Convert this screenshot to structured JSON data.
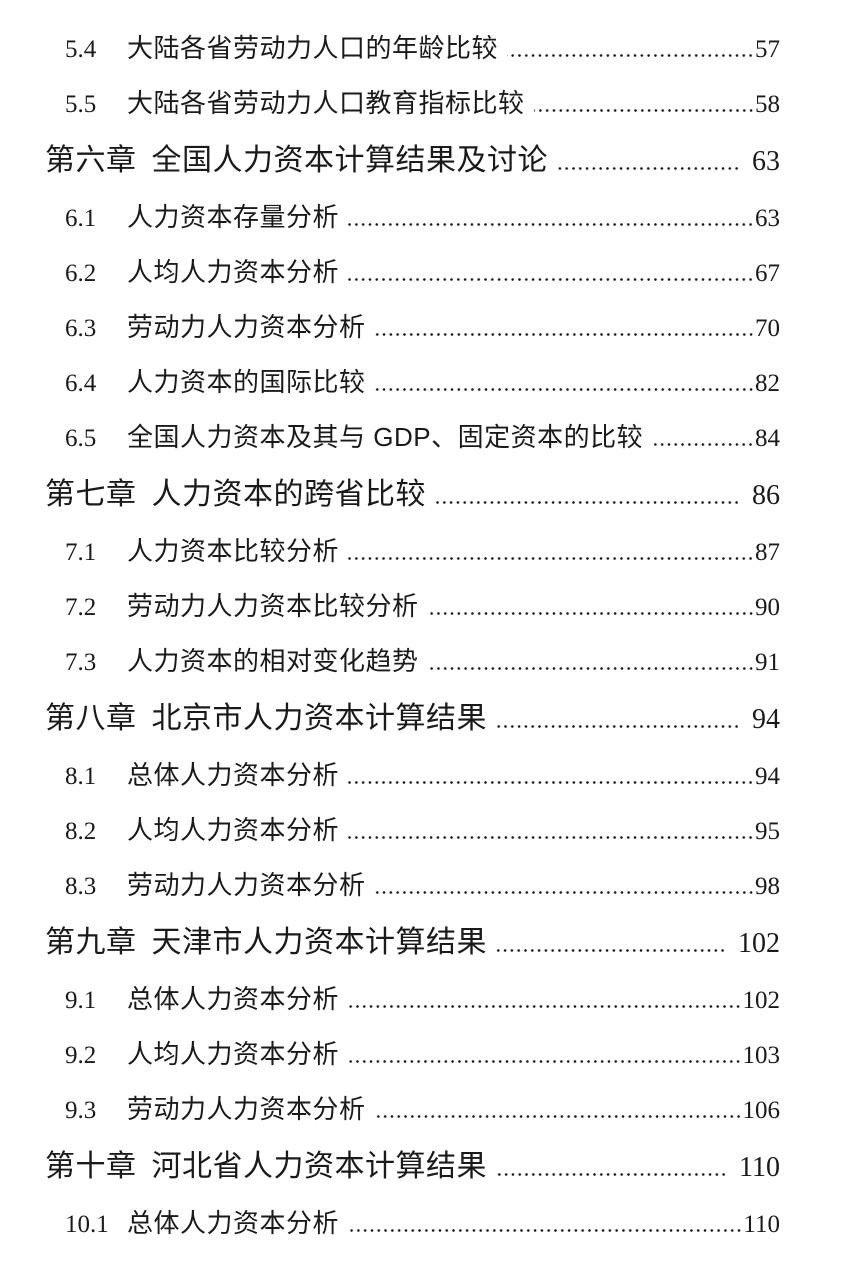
{
  "page": {
    "background_color": "#ffffff",
    "text_color": "#1a1a1a",
    "dot_leader_color": "#1a1a1a",
    "kind": "table-of-contents"
  },
  "toc": {
    "entries": [
      {
        "type": "section",
        "num": "5.4",
        "title": "大陆各省劳动力人口的年龄比较",
        "page": "57"
      },
      {
        "type": "section",
        "num": "5.5",
        "title": "大陆各省劳动力人口教育指标比较",
        "page": "58"
      },
      {
        "type": "chapter",
        "num": "第六章",
        "title": "全国人力资本计算结果及讨论",
        "page": "63"
      },
      {
        "type": "section",
        "num": "6.1",
        "title": "人力资本存量分析",
        "page": "63"
      },
      {
        "type": "section",
        "num": "6.2",
        "title": "人均人力资本分析",
        "page": "67"
      },
      {
        "type": "section",
        "num": "6.3",
        "title": "劳动力人力资本分析",
        "page": "70"
      },
      {
        "type": "section",
        "num": "6.4",
        "title": "人力资本的国际比较",
        "page": "82"
      },
      {
        "type": "section",
        "num": "6.5",
        "title": "全国人力资本及其与 GDP、固定资本的比较",
        "page": "84"
      },
      {
        "type": "chapter",
        "num": "第七章",
        "title": "人力资本的跨省比较",
        "page": "86"
      },
      {
        "type": "section",
        "num": "7.1",
        "title": "人力资本比较分析",
        "page": "87"
      },
      {
        "type": "section",
        "num": "7.2",
        "title": "劳动力人力资本比较分析",
        "page": "90"
      },
      {
        "type": "section",
        "num": "7.3",
        "title": "人力资本的相对变化趋势",
        "page": "91"
      },
      {
        "type": "chapter",
        "num": "第八章",
        "title": "北京市人力资本计算结果",
        "page": "94"
      },
      {
        "type": "section",
        "num": "8.1",
        "title": "总体人力资本分析",
        "page": "94"
      },
      {
        "type": "section",
        "num": "8.2",
        "title": "人均人力资本分析",
        "page": "95"
      },
      {
        "type": "section",
        "num": "8.3",
        "title": "劳动力人力资本分析",
        "page": "98"
      },
      {
        "type": "chapter",
        "num": "第九章",
        "title": "天津市人力资本计算结果",
        "page": "102"
      },
      {
        "type": "section",
        "num": "9.1",
        "title": "总体人力资本分析",
        "page": "102"
      },
      {
        "type": "section",
        "num": "9.2",
        "title": "人均人力资本分析",
        "page": "103"
      },
      {
        "type": "section",
        "num": "9.3",
        "title": "劳动力人力资本分析",
        "page": "106"
      },
      {
        "type": "chapter",
        "num": "第十章",
        "title": "河北省人力资本计算结果",
        "page": "110"
      },
      {
        "type": "section",
        "num": "10.1",
        "title": "总体人力资本分析",
        "page": "110"
      }
    ]
  }
}
